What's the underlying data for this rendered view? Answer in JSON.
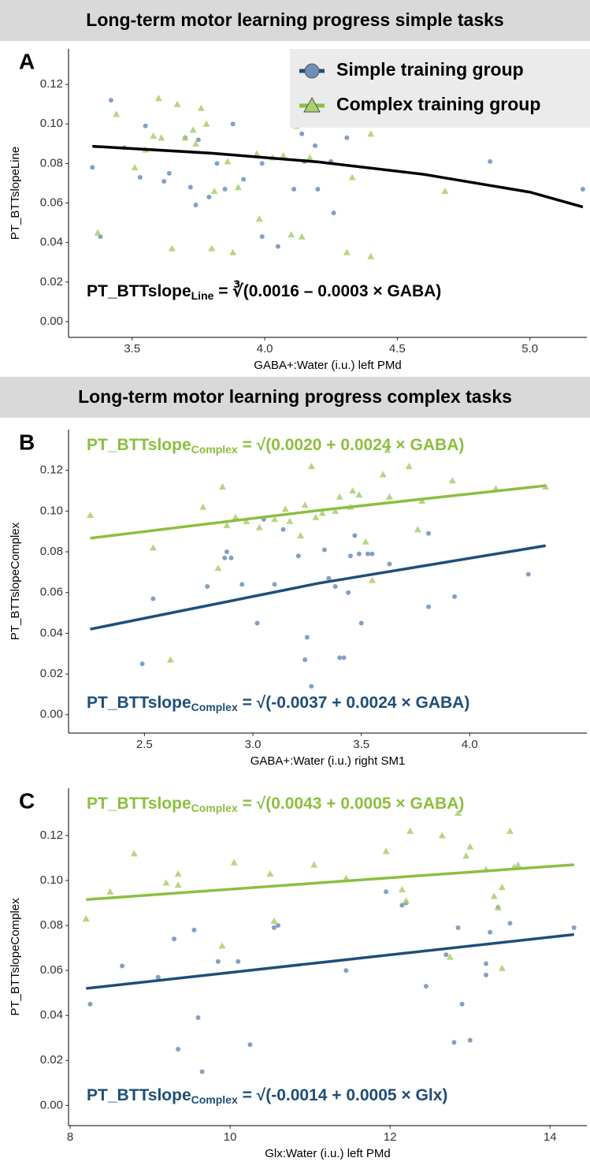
{
  "chart_data": [
    {
      "type": "scatter",
      "section_title": "Long-term motor learning progress simple tasks",
      "panel_label": "A",
      "xlabel": "GABA+:Water (i.u.) left PMd",
      "ylabel": "PT_BTTslopeLine",
      "xlim": [
        3.26,
        5.215
      ],
      "ylim": [
        -0.008,
        0.138
      ],
      "xticks": [
        3.5,
        {
          "value": 4,
          "label": "4.0"
        },
        4.5,
        {
          "value": 5,
          "label": "5.0"
        }
      ],
      "yticks": [
        {
          "value": 0,
          "label": "0.00"
        },
        0.02,
        0.04,
        0.06,
        0.08,
        {
          "value": 0.1,
          "label": "0.10"
        },
        0.12
      ],
      "legend": "top-right",
      "series": [
        {
          "name": "Simple training group",
          "color": "#6f8fba",
          "line_color": "#1f4e79",
          "marker": "circle",
          "x": [
            3.35,
            3.38,
            3.42,
            3.47,
            3.53,
            3.55,
            3.62,
            3.64,
            3.7,
            3.72,
            3.74,
            3.75,
            3.79,
            3.82,
            3.85,
            3.88,
            3.92,
            3.99,
            4.05,
            4.11,
            4.15,
            4.19,
            4.2,
            4.25,
            4.26,
            4.31,
            4.85,
            5.2,
            4.14,
            3.99
          ],
          "values": [
            0.078,
            0.043,
            0.112,
            0.088,
            0.073,
            0.099,
            0.071,
            0.075,
            0.093,
            0.068,
            0.059,
            0.092,
            0.063,
            0.08,
            0.067,
            0.1,
            0.072,
            0.043,
            0.038,
            0.067,
            0.081,
            0.089,
            0.067,
            0.081,
            0.055,
            0.093,
            0.081,
            0.067,
            0.095,
            0.08
          ]
        },
        {
          "name": "Complex training group",
          "color": "#a9cf6f",
          "line_color": "#8cbf3f",
          "marker": "triangle",
          "x": [
            3.37,
            3.44,
            3.51,
            3.55,
            3.58,
            3.6,
            3.61,
            3.65,
            3.67,
            3.7,
            3.73,
            3.74,
            3.76,
            3.78,
            3.8,
            3.81,
            3.86,
            3.88,
            3.9,
            3.97,
            3.98,
            4.03,
            4.07,
            4.1,
            4.12,
            4.14,
            4.17,
            4.31,
            4.33,
            4.4,
            4.4,
            4.68
          ],
          "values": [
            0.045,
            0.105,
            0.078,
            0.087,
            0.094,
            0.113,
            0.093,
            0.037,
            0.11,
            0.093,
            0.097,
            0.09,
            0.108,
            0.1,
            0.037,
            0.066,
            0.081,
            0.035,
            0.068,
            0.085,
            0.052,
            0.083,
            0.084,
            0.044,
            0.099,
            0.043,
            0.083,
            0.035,
            0.073,
            0.095,
            0.033,
            0.066
          ]
        }
      ],
      "fits": [
        {
          "color": "#000000",
          "x": [
            3.35,
            3.8,
            4.2,
            4.6,
            5.0,
            5.2
          ],
          "values": [
            0.0887,
            0.0852,
            0.0808,
            0.0745,
            0.0655,
            0.058
          ]
        }
      ],
      "equations": [
        {
          "color": "#000000",
          "base": "PT_BTTslope",
          "sub": "Line",
          "rest": " = ∛(0.0016 – 0.0003 × GABA)"
        }
      ]
    },
    {
      "type": "scatter",
      "section_title": "Long-term motor learning progress complex tasks",
      "panel_label": "B",
      "xlabel": "GABA+:Water (i.u.) right SM1",
      "ylabel": "PT_BTTslopeComplex",
      "xlim": [
        2.15,
        4.54
      ],
      "ylim": [
        -0.009,
        0.14
      ],
      "xticks": [
        2.5,
        {
          "value": 3,
          "label": "3.0"
        },
        3.5,
        {
          "value": 4,
          "label": "4.0"
        }
      ],
      "yticks": [
        {
          "value": 0,
          "label": "0.00"
        },
        0.02,
        0.04,
        0.06,
        0.08,
        {
          "value": 0.1,
          "label": "0.10"
        },
        0.12
      ],
      "series": [
        {
          "color": "#6f8fba",
          "marker": "circle",
          "x": [
            2.49,
            2.54,
            2.79,
            2.87,
            2.88,
            2.9,
            2.95,
            3.02,
            3.05,
            3.1,
            3.14,
            3.21,
            3.24,
            3.25,
            3.27,
            3.33,
            3.35,
            3.38,
            3.4,
            3.42,
            3.44,
            3.45,
            3.47,
            3.49,
            3.5,
            3.53,
            3.55,
            3.63,
            3.81,
            3.81,
            3.93,
            4.27
          ],
          "values": [
            0.025,
            0.057,
            0.063,
            0.077,
            0.08,
            0.077,
            0.064,
            0.045,
            0.096,
            0.064,
            0.091,
            0.078,
            0.027,
            0.038,
            0.014,
            0.081,
            0.067,
            0.063,
            0.028,
            0.028,
            0.06,
            0.078,
            0.088,
            0.079,
            0.045,
            0.079,
            0.079,
            0.074,
            0.089,
            0.053,
            0.058,
            0.069
          ]
        },
        {
          "color": "#a9cf6f",
          "marker": "triangle",
          "x": [
            2.25,
            2.54,
            2.62,
            2.77,
            2.84,
            2.86,
            2.88,
            2.92,
            2.97,
            3.03,
            3.1,
            3.15,
            3.17,
            3.22,
            3.24,
            3.27,
            3.29,
            3.32,
            3.38,
            3.4,
            3.45,
            3.46,
            3.49,
            3.52,
            3.55,
            3.6,
            3.62,
            3.63,
            3.72,
            3.76,
            3.78,
            3.92,
            4.12,
            4.35
          ],
          "values": [
            0.098,
            0.082,
            0.027,
            0.102,
            0.072,
            0.112,
            0.093,
            0.097,
            0.095,
            0.092,
            0.096,
            0.101,
            0.095,
            0.088,
            0.103,
            0.122,
            0.097,
            0.099,
            0.1,
            0.107,
            0.102,
            0.11,
            0.108,
            0.085,
            0.066,
            0.118,
            0.13,
            0.107,
            0.122,
            0.091,
            0.105,
            0.115,
            0.111,
            0.112
          ]
        }
      ],
      "fits": [
        {
          "color": "#8cbf3f",
          "x": [
            2.25,
            3.3,
            4.35
          ],
          "values": [
            0.0867,
            0.1003,
            0.1125
          ]
        },
        {
          "color": "#1f4e79",
          "x": [
            2.25,
            3.3,
            4.35
          ],
          "values": [
            0.042,
            0.0645,
            0.083
          ]
        }
      ],
      "equations": [
        {
          "color": "#8cbf3f",
          "base": "PT_BTTslope",
          "sub": "Complex",
          "rest": " = √(0.0020 + 0.0024 × GABA)",
          "place": "top"
        },
        {
          "color": "#1f4e79",
          "base": "PT_BTTslope",
          "sub": "Complex",
          "rest": " = √(-0.0037 + 0.0024 × GABA)",
          "place": "bottom"
        }
      ]
    },
    {
      "type": "scatter",
      "panel_label": "C",
      "xlabel": "Glx:Water (i.u.) left PMd",
      "ylabel": "PT_BTTslopeComplex",
      "xlim": [
        7.98,
        14.46
      ],
      "ylim": [
        -0.009,
        0.141
      ],
      "xticks": [
        8,
        10,
        12,
        14
      ],
      "yticks": [
        {
          "value": 0,
          "label": "0.00"
        },
        0.02,
        0.04,
        0.06,
        0.08,
        {
          "value": 0.1,
          "label": "0.10"
        },
        0.12
      ],
      "series": [
        {
          "color": "#6f8fba",
          "marker": "circle",
          "x": [
            8.25,
            8.65,
            9.1,
            9.3,
            9.35,
            9.55,
            9.6,
            9.65,
            9.85,
            10.1,
            10.25,
            10.55,
            10.6,
            11.45,
            11.95,
            12.15,
            12.2,
            12.45,
            12.7,
            12.8,
            12.85,
            12.9,
            13.0,
            13.2,
            13.2,
            13.25,
            13.35,
            13.5,
            14.3
          ],
          "values": [
            0.045,
            0.062,
            0.057,
            0.074,
            0.025,
            0.078,
            0.039,
            0.015,
            0.064,
            0.064,
            0.027,
            0.079,
            0.08,
            0.06,
            0.095,
            0.089,
            0.09,
            0.053,
            0.067,
            0.028,
            0.079,
            0.045,
            0.029,
            0.063,
            0.058,
            0.077,
            0.088,
            0.081,
            0.079
          ]
        },
        {
          "color": "#a9cf6f",
          "marker": "triangle",
          "x": [
            8.2,
            8.5,
            8.8,
            9.2,
            9.35,
            9.35,
            9.9,
            10.05,
            10.5,
            10.55,
            11.05,
            11.45,
            11.95,
            12.15,
            12.2,
            12.25,
            12.65,
            12.75,
            12.85,
            12.95,
            13.0,
            13.2,
            13.3,
            13.35,
            13.4,
            13.4,
            13.5,
            13.55,
            13.6
          ],
          "values": [
            0.083,
            0.095,
            0.112,
            0.099,
            0.103,
            0.098,
            0.071,
            0.108,
            0.103,
            0.082,
            0.107,
            0.101,
            0.113,
            0.096,
            0.091,
            0.122,
            0.12,
            0.066,
            0.13,
            0.111,
            0.115,
            0.105,
            0.093,
            0.088,
            0.097,
            0.061,
            0.122,
            0.106,
            0.107
          ]
        }
      ],
      "fits": [
        {
          "color": "#8cbf3f",
          "x": [
            8.2,
            11.25,
            14.3
          ],
          "values": [
            0.0915,
            0.0993,
            0.107
          ]
        },
        {
          "color": "#1f4e79",
          "x": [
            8.2,
            11.25,
            14.3
          ],
          "values": [
            0.052,
            0.064,
            0.076
          ]
        }
      ],
      "equations": [
        {
          "color": "#8cbf3f",
          "base": "PT_BTTslope",
          "sub": "Complex",
          "rest": " = √(0.0043 + 0.0005 × GABA)",
          "place": "top"
        },
        {
          "color": "#1f4e79",
          "base": "PT_BTTslope",
          "sub": "Complex",
          "rest": " = √(-0.0014 + 0.0005 × Glx)",
          "place": "bottom"
        }
      ]
    }
  ]
}
